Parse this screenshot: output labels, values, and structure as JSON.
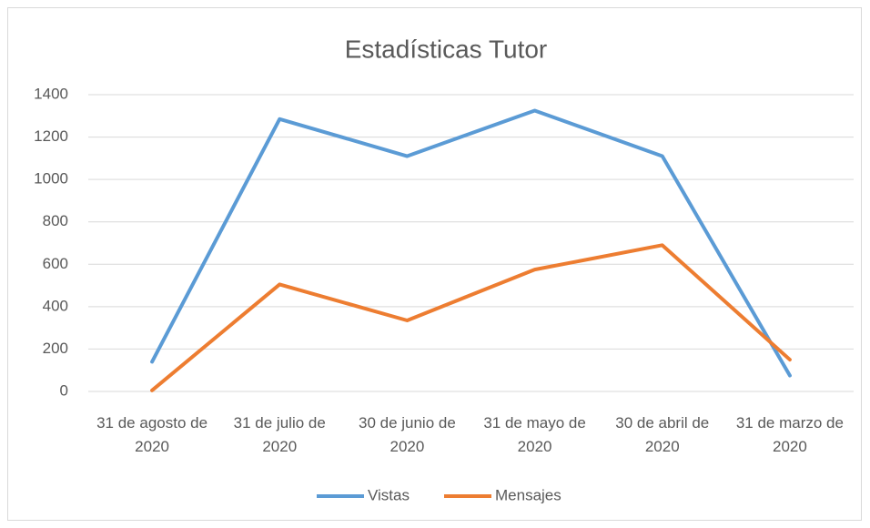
{
  "chart_data": {
    "type": "line",
    "title": "Estadísticas Tutor",
    "categories": [
      "31 de agosto de 2020",
      "31 de julio de 2020",
      "30 de junio de 2020",
      "31 de mayo de 2020",
      "30 de abril de 2020",
      "31 de marzo de 2020"
    ],
    "series": [
      {
        "name": "Vistas",
        "color": "#5b9bd5",
        "values": [
          140,
          1285,
          1110,
          1325,
          1110,
          75
        ]
      },
      {
        "name": "Mensajes",
        "color": "#ed7d31",
        "values": [
          5,
          505,
          335,
          575,
          690,
          150
        ]
      }
    ],
    "ylim": [
      0,
      1400
    ],
    "yticks": [
      0,
      200,
      400,
      600,
      800,
      1000,
      1200,
      1400
    ],
    "grid": true,
    "legend": "bottom"
  }
}
